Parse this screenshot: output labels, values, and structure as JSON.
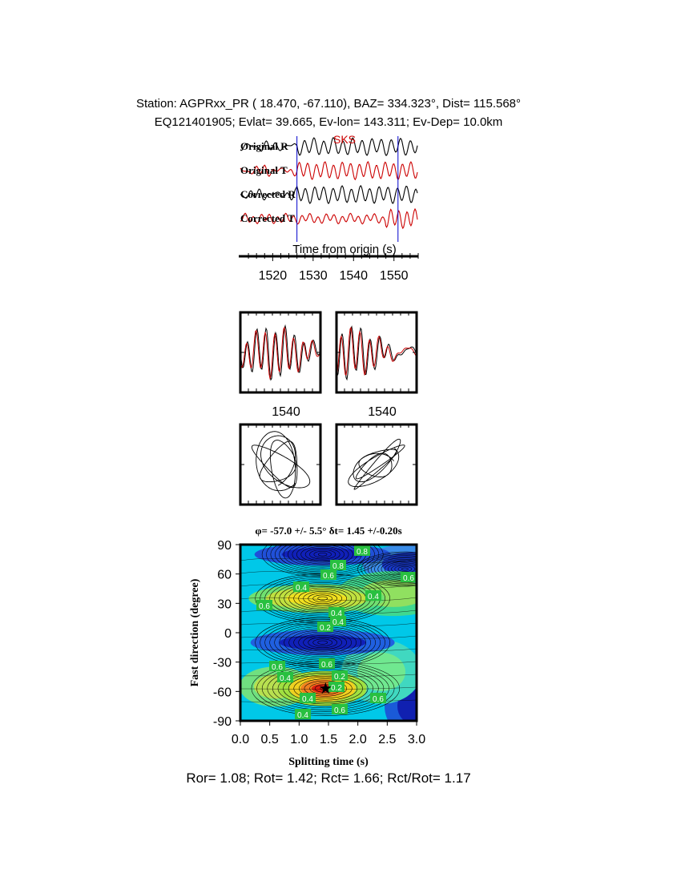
{
  "header": {
    "line1": "Station: AGPRxx_PR (  18.470,  -67.110), BAZ=  334.323°, Dist=  115.568°",
    "line2": "EQ121401905; Evlat=  39.665, Ev-lon= 143.311; Ev-Dep= 10.0km"
  },
  "traces": {
    "labels": [
      "Original R",
      "Original T",
      "Corrected R",
      "Corrected T"
    ],
    "phase_label": "SKS",
    "xlabel": "Time from origin (s)",
    "xticks": [
      1520,
      1530,
      1540,
      1550
    ],
    "xrange": [
      1512,
      1556
    ],
    "window_start": 1526,
    "window_end": 1551,
    "colors": {
      "radial": "#000000",
      "transverse": "#cc0000",
      "window": "#0000cc"
    }
  },
  "waveform_panels": {
    "tick_label": "1540"
  },
  "particle_panels": {},
  "grid_search": {
    "title": "φ= -57.0 +/- 5.5° δt= 1.45 +/-0.20s",
    "xlabel": "Splitting time (s)",
    "ylabel": "Fast direction (degree)",
    "xticks": [
      "0.0",
      "0.5",
      "1.0",
      "1.5",
      "2.0",
      "2.5",
      "3.0"
    ],
    "yticks": [
      "90",
      "60",
      "30",
      "0",
      "-30",
      "-60",
      "-90"
    ],
    "best_phi": -57.0,
    "best_dt": 1.45,
    "contour_labels": [
      "0.8",
      "0.8",
      "0.6",
      "0.6",
      "0.4",
      "0.4",
      "0.4",
      "0.2",
      "0.6",
      "0.4",
      "0.6",
      "0.6",
      "0.4",
      "0.2",
      "0.6",
      "0.4",
      "0.6",
      "0.4",
      "0.2"
    ]
  },
  "summary": "Ror= 1.08; Rot= 1.42; Rct= 1.66; Rct/Rot= 1.17",
  "chart_data": [
    {
      "type": "line",
      "title": "Station: AGPRxx_PR (  18.470,  -67.110), BAZ=  334.323°, Dist=  115.568°",
      "xlabel": "Time from origin (s)",
      "x_ticks": [
        1520,
        1530,
        1540,
        1550
      ],
      "series": [
        {
          "name": "Original R"
        },
        {
          "name": "Original T"
        },
        {
          "name": "Corrected R"
        },
        {
          "name": "Corrected T"
        }
      ],
      "annotations": [
        "SKS"
      ]
    },
    {
      "type": "heatmap",
      "title": "φ= -57.0 +/- 5.5° δt= 1.45 +/-0.20s",
      "xlabel": "Splitting time (s)",
      "ylabel": "Fast direction (degree)",
      "xlim": [
        0.0,
        3.0
      ],
      "ylim": [
        -90,
        90
      ],
      "best_fit": {
        "phi": -57.0,
        "phi_err": 5.5,
        "dt": 1.45,
        "dt_err": 0.2
      },
      "contour_levels": [
        0.2,
        0.4,
        0.6,
        0.8
      ]
    }
  ]
}
